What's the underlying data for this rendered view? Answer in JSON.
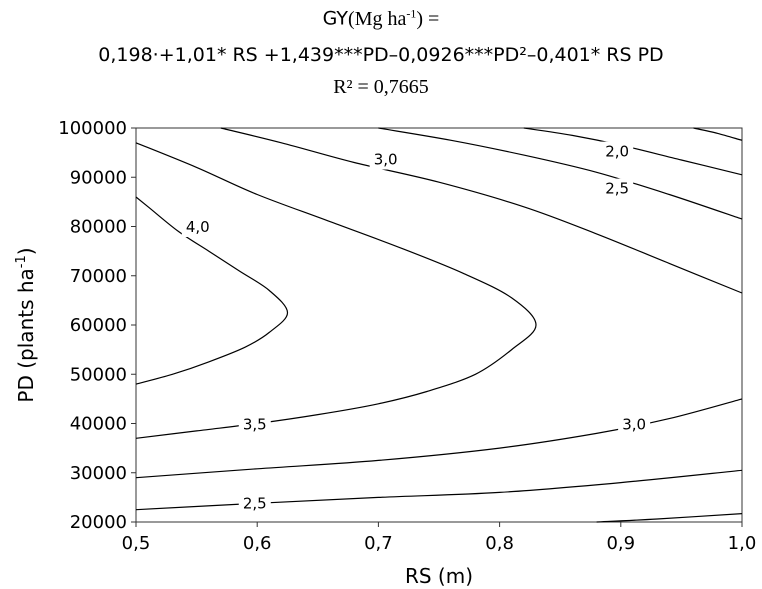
{
  "chart_data": {
    "type": "contour",
    "title": {
      "line1_prefix": "GY",
      "line1_unit": "(Mg ha",
      "line1_unit_exp": "-1",
      "line1_unit_end": ") =",
      "equation": "0,198·+1,01* RS  +1,439***PD–0,0926***PD²–0,401* RS PD",
      "r2": "R² = 0,7665"
    },
    "xlabel": "RS (m)",
    "ylabel_prefix": "PD (plants ha",
    "ylabel_exp": "-1",
    "ylabel_suffix": ")",
    "xlim": [
      0.5,
      1.0
    ],
    "ylim": [
      20000,
      100000
    ],
    "x_ticks": [
      "0,5",
      "0,6",
      "0,7",
      "0,8",
      "0,9",
      "1,0"
    ],
    "y_ticks": [
      "20000",
      "30000",
      "40000",
      "50000",
      "60000",
      "70000",
      "80000",
      "90000",
      "100000"
    ],
    "grid": false,
    "contours": [
      {
        "level": "4,0",
        "points": [
          [
            0.5,
            48000
          ],
          [
            0.53,
            50000
          ],
          [
            0.56,
            52500
          ],
          [
            0.59,
            55500
          ],
          [
            0.61,
            58500
          ],
          [
            0.625,
            62500
          ],
          [
            0.61,
            67000
          ],
          [
            0.585,
            71000
          ],
          [
            0.56,
            75000
          ],
          [
            0.535,
            79000
          ],
          [
            0.51,
            84000
          ],
          [
            0.5,
            86000
          ]
        ]
      },
      {
        "level": "3,5",
        "points": [
          [
            0.5,
            37000
          ],
          [
            0.55,
            38500
          ],
          [
            0.6,
            40000
          ],
          [
            0.65,
            41800
          ],
          [
            0.7,
            44000
          ],
          [
            0.74,
            46500
          ],
          [
            0.78,
            50000
          ],
          [
            0.81,
            55000
          ],
          [
            0.83,
            60000
          ],
          [
            0.81,
            65500
          ],
          [
            0.77,
            70500
          ],
          [
            0.72,
            75500
          ],
          [
            0.66,
            81000
          ],
          [
            0.6,
            86500
          ],
          [
            0.55,
            92000
          ],
          [
            0.5,
            97000
          ]
        ]
      },
      {
        "level": "3,0",
        "points": [
          [
            0.5,
            29000
          ],
          [
            0.6,
            30800
          ],
          [
            0.7,
            32500
          ],
          [
            0.8,
            35000
          ],
          [
            0.88,
            38000
          ],
          [
            0.94,
            41000
          ],
          [
            1.0,
            45000
          ]
        ]
      },
      {
        "level": "3,0",
        "points": [
          [
            0.57,
            100000
          ],
          [
            0.62,
            97000
          ],
          [
            0.68,
            93000
          ],
          [
            0.75,
            89000
          ],
          [
            0.82,
            84000
          ],
          [
            0.88,
            78500
          ],
          [
            0.94,
            72500
          ],
          [
            1.0,
            66500
          ]
        ]
      },
      {
        "level": "2,5",
        "points": [
          [
            0.5,
            22500
          ],
          [
            0.6,
            23800
          ],
          [
            0.7,
            25000
          ],
          [
            0.8,
            26000
          ],
          [
            0.9,
            28000
          ],
          [
            1.0,
            30500
          ]
        ]
      },
      {
        "level": "2,5",
        "points": [
          [
            0.7,
            100000
          ],
          [
            0.76,
            97500
          ],
          [
            0.82,
            94500
          ],
          [
            0.88,
            91000
          ],
          [
            0.94,
            86500
          ],
          [
            1.0,
            81500
          ]
        ]
      },
      {
        "level": "2,0",
        "points": [
          [
            0.82,
            100000
          ],
          [
            0.86,
            98500
          ],
          [
            0.9,
            96500
          ],
          [
            0.95,
            93500
          ],
          [
            1.0,
            90500
          ]
        ]
      },
      {
        "level": "2,0",
        "points": [
          [
            0.88,
            20000
          ],
          [
            0.93,
            20600
          ],
          [
            1.0,
            21700
          ]
        ]
      },
      {
        "level": "",
        "points": [
          [
            0.96,
            100000
          ],
          [
            0.98,
            98900
          ],
          [
            1.0,
            97500
          ]
        ]
      }
    ],
    "contour_labels": [
      {
        "text": "4,0",
        "x": 0.551,
        "y": 79900
      },
      {
        "text": "3,0",
        "x": 0.706,
        "y": 93600
      },
      {
        "text": "2,0",
        "x": 0.897,
        "y": 95200
      },
      {
        "text": "2,5",
        "x": 0.897,
        "y": 87700
      },
      {
        "text": "3,5",
        "x": 0.598,
        "y": 39800
      },
      {
        "text": "3,0",
        "x": 0.911,
        "y": 39800
      },
      {
        "text": "2,5",
        "x": 0.598,
        "y": 23800
      }
    ]
  }
}
